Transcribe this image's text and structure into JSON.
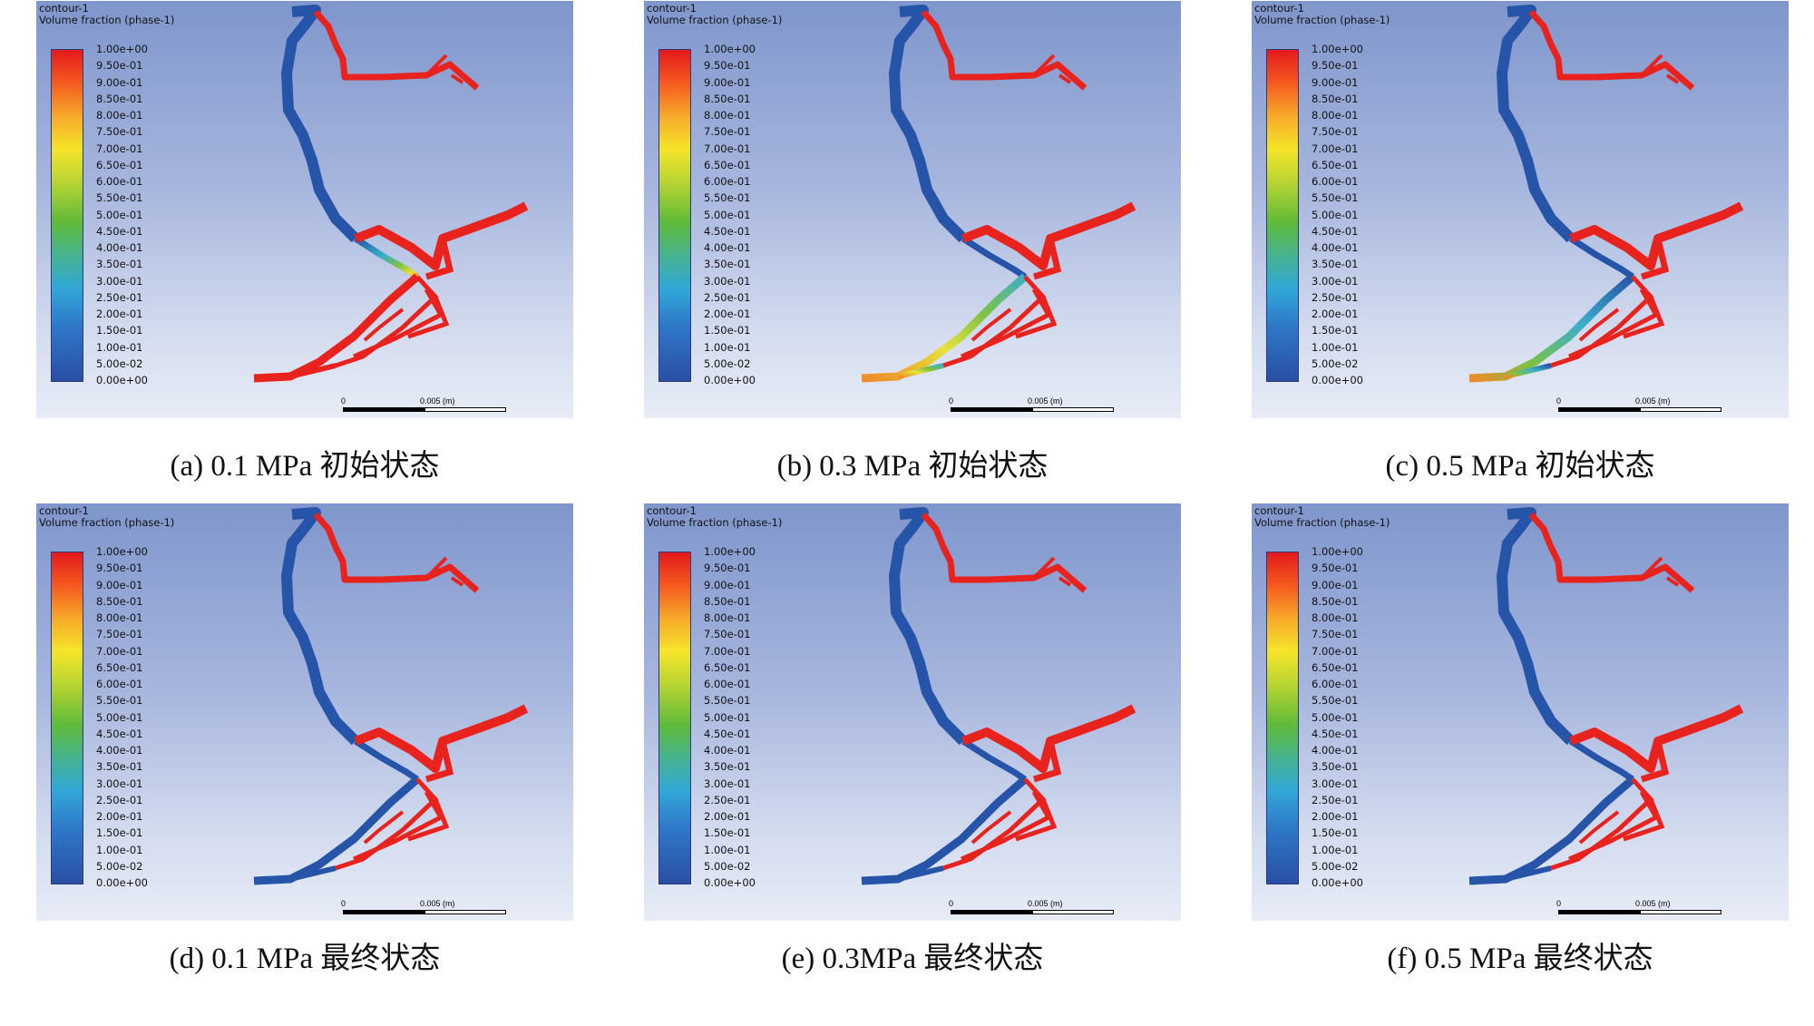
{
  "panels": [
    {
      "id": "a",
      "header_line1": "contour-1",
      "header_line2": "Volume fraction (phase-1)",
      "scale_zero": "0",
      "scale_max": "0.005 (m)",
      "caption": "(a) 0.1 MPa 初始状态",
      "state": "initial"
    },
    {
      "id": "b",
      "header_line1": "contour-1",
      "header_line2": "Volume fraction (phase-1)",
      "scale_zero": "0",
      "scale_max": "0.005 (m)",
      "caption": "(b) 0.3 MPa 初始状态",
      "state": "initial"
    },
    {
      "id": "c",
      "header_line1": "contour-1",
      "header_line2": "Volume fraction (phase-1)",
      "scale_zero": "0",
      "scale_max": "0.005 (m)",
      "caption": "(c) 0.5 MPa 初始状态",
      "state": "initial"
    },
    {
      "id": "d",
      "header_line1": "contour-1",
      "header_line2": "Volume fraction (phase-1)",
      "scale_zero": "0",
      "scale_max": "0.005 (m)",
      "caption": "(d) 0.1 MPa 最终状态",
      "state": "final"
    },
    {
      "id": "e",
      "header_line1": "contour-1",
      "header_line2": "Volume fraction (phase-1)",
      "scale_zero": "0",
      "scale_max": "0.005 (m)",
      "caption": "(e) 0.3MPa 最终状态",
      "state": "final"
    },
    {
      "id": "f",
      "header_line1": "contour-1",
      "header_line2": "Volume fraction (phase-1)",
      "scale_zero": "0",
      "scale_max": "0.005 (m)",
      "caption": "(f) 0.5 MPa 最终状态",
      "state": "final"
    }
  ],
  "colorbar_ticks": [
    "1.00e+00",
    "9.50e-01",
    "9.00e-01",
    "8.50e-01",
    "8.00e-01",
    "7.50e-01",
    "7.00e-01",
    "6.50e-01",
    "6.00e-01",
    "5.50e-01",
    "5.00e-01",
    "4.50e-01",
    "4.00e-01",
    "3.50e-01",
    "3.00e-01",
    "2.50e-01",
    "2.00e-01",
    "1.50e-01",
    "1.00e-01",
    "5.00e-02",
    "0.00e+00"
  ],
  "colors": {
    "water": "#e8221d",
    "air": "#2554a8",
    "mixed_green": "#7cc244",
    "mixed_yellow": "#e6e23a",
    "mixed_orange": "#f08a2a",
    "mixed_cyan": "#3bb0c9"
  }
}
